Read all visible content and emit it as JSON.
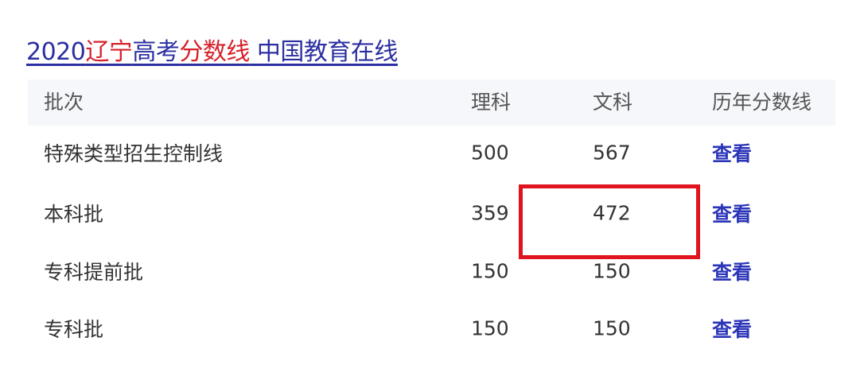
{
  "title": {
    "parts": [
      {
        "text": "2020",
        "color": "#2b2fa0"
      },
      {
        "text": "辽宁",
        "color": "#d6212b"
      },
      {
        "text": "高考",
        "color": "#2b2fa0"
      },
      {
        "text": "分数线",
        "color": "#d6212b"
      },
      {
        "text": " 中国教育在线",
        "color": "#2b2fa0"
      }
    ]
  },
  "table": {
    "headers": [
      "批次",
      "理科",
      "文科",
      "历年分数线"
    ],
    "rows": [
      {
        "batch": "特殊类型招生控制线",
        "science": "500",
        "arts": "567",
        "link": "查看"
      },
      {
        "batch": "本科批",
        "science": "359",
        "arts": "472",
        "link": "查看"
      },
      {
        "batch": "专科提前批",
        "science": "150",
        "arts": "150",
        "link": "查看"
      },
      {
        "batch": "专科批",
        "science": "150",
        "arts": "150",
        "link": "查看"
      }
    ]
  },
  "highlight": {
    "row": 1,
    "column": "arts",
    "color": "#e0141e"
  }
}
